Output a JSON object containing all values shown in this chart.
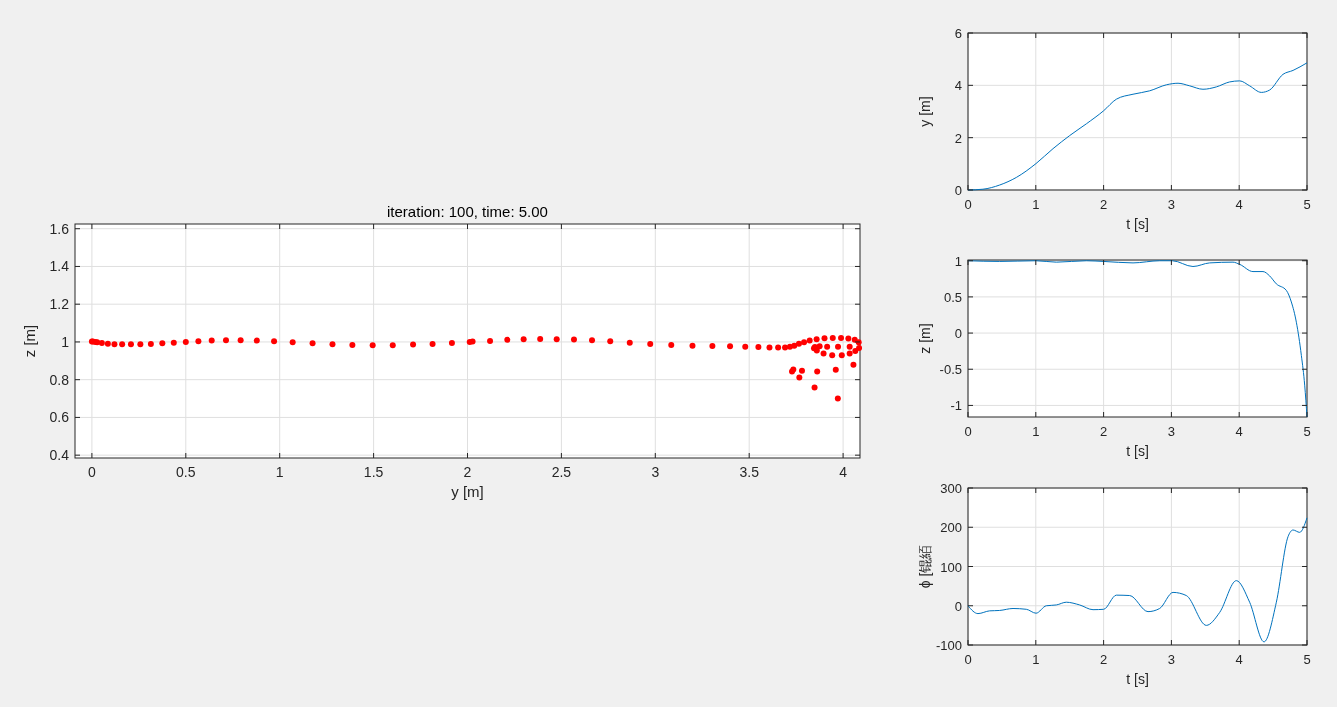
{
  "chart_data": [
    {
      "type": "scatter",
      "title": "iteration: 100, time: 5.00",
      "xlabel": "y [m]",
      "ylabel": "z [m]",
      "xlim": [
        -0.09,
        4.09
      ],
      "ylim": [
        0.385,
        1.625
      ],
      "xticks": [
        0,
        0.5,
        1,
        1.5,
        2,
        2.5,
        3,
        3.5,
        4
      ],
      "yticks": [
        0.4,
        0.6,
        0.8,
        1,
        1.2,
        1.4,
        1.6
      ],
      "grid": true,
      "marker": "circle",
      "series": [
        {
          "color": "#ff0000",
          "x": [
            0,
            0.005,
            0.018,
            0.028,
            0.053,
            0.085,
            0.12,
            0.161,
            0.208,
            0.258,
            0.314,
            0.375,
            0.436,
            0.5,
            0.567,
            0.638,
            0.714,
            0.792,
            0.878,
            0.97,
            1.069,
            1.175,
            1.281,
            1.387,
            1.495,
            1.602,
            1.71,
            1.814,
            1.917,
            2.012,
            2.027,
            2.12,
            2.212,
            2.299,
            2.387,
            2.475,
            2.567,
            2.663,
            2.76,
            2.864,
            2.973,
            3.085,
            3.198,
            3.304,
            3.398,
            3.479,
            3.549,
            3.608,
            3.654,
            3.691,
            3.717,
            3.74,
            3.765,
            3.792,
            3.822,
            3.859,
            3.901,
            3.945,
            3.989,
            4.028,
            4.062,
            4.083,
            4.085,
            4.065,
            4.035,
            3.993,
            3.942,
            3.896,
            3.86,
            3.845,
            3.85,
            3.875,
            3.915,
            3.973,
            4.035,
            3.728,
            3.735,
            3.781,
            3.767,
            3.848,
            3.862,
            3.961,
            3.972,
            4.055
          ],
          "values": [
            1.002,
            1.002,
            1.0,
            0.998,
            0.995,
            0.991,
            0.988,
            0.988,
            0.988,
            0.988,
            0.989,
            0.993,
            0.996,
            1.0,
            1.004,
            1.007,
            1.009,
            1.009,
            1.007,
            1.004,
            0.998,
            0.993,
            0.988,
            0.984,
            0.982,
            0.982,
            0.986,
            0.989,
            0.995,
            1.0,
            1.002,
            1.005,
            1.011,
            1.014,
            1.016,
            1.014,
            1.013,
            1.009,
            1.004,
            0.996,
            0.989,
            0.984,
            0.98,
            0.979,
            0.977,
            0.975,
            0.973,
            0.971,
            0.971,
            0.971,
            0.975,
            0.98,
            0.991,
            0.998,
            1.007,
            1.014,
            1.02,
            1.021,
            1.021,
            1.018,
            1.011,
            0.998,
            0.968,
            0.952,
            0.939,
            0.93,
            0.93,
            0.939,
            0.954,
            0.966,
            0.973,
            0.977,
            0.975,
            0.975,
            0.975,
            0.843,
            0.854,
            0.848,
            0.811,
            0.759,
            0.843,
            0.852,
            0.7,
            0.879
          ]
        }
      ]
    },
    {
      "type": "line",
      "xlabel": "t [s]",
      "ylabel": "y [m]",
      "xlim": [
        0,
        5
      ],
      "ylim": [
        0,
        6
      ],
      "xticks": [
        0,
        1,
        2,
        3,
        4,
        5
      ],
      "yticks": [
        0,
        2,
        4,
        6
      ],
      "grid": true,
      "series": [
        {
          "color": "#0072bd",
          "x": [
            0,
            0.22,
            0.467,
            0.713,
            1.003,
            1.254,
            1.5,
            1.746,
            2.001,
            2.188,
            2.434,
            2.68,
            2.926,
            3.098,
            3.27,
            3.466,
            3.663,
            3.859,
            4.007,
            4.154,
            4.326,
            4.449,
            4.646,
            4.794,
            5
          ],
          "values": [
            0,
            0.03,
            0.19,
            0.48,
            1.01,
            1.58,
            2.08,
            2.53,
            3.03,
            3.47,
            3.66,
            3.79,
            4.02,
            4.08,
            3.98,
            3.85,
            3.94,
            4.13,
            4.17,
            3.98,
            3.73,
            3.82,
            4.42,
            4.57,
            4.86
          ]
        }
      ]
    },
    {
      "type": "line",
      "xlabel": "t [s]",
      "ylabel": "z [m]",
      "xlim": [
        0,
        5
      ],
      "ylim": [
        -1.16,
        1.01
      ],
      "xticks": [
        0,
        1,
        2,
        3,
        4,
        5
      ],
      "yticks": [
        -1,
        -0.5,
        0,
        0.5,
        1
      ],
      "grid": true,
      "series": [
        {
          "color": "#0072bd",
          "x": [
            0,
            0.467,
            1.003,
            1.303,
            1.746,
            2.001,
            2.434,
            2.827,
            3.013,
            3.318,
            3.564,
            3.908,
            4.007,
            4.203,
            4.351,
            4.449,
            4.548,
            4.695,
            4.769,
            4.843,
            4.917,
            4.966,
            5
          ],
          "values": [
            1,
            0.99,
            1,
            0.98,
            1,
            0.99,
            0.97,
            1,
            1,
            0.92,
            0.97,
            0.98,
            0.95,
            0.85,
            0.85,
            0.79,
            0.68,
            0.59,
            0.43,
            0.15,
            -0.31,
            -0.72,
            -1.16
          ]
        }
      ]
    },
    {
      "type": "line",
      "xlabel": "t [s]",
      "ylabel": "ϕ [锟絔",
      "xlim": [
        0,
        5
      ],
      "ylim": [
        -100,
        300
      ],
      "xticks": [
        0,
        1,
        2,
        3,
        4,
        5
      ],
      "yticks": [
        -100,
        0,
        100,
        200,
        300
      ],
      "grid": true,
      "series": [
        {
          "color": "#0072bd",
          "x": [
            0,
            0.147,
            0.319,
            0.467,
            0.664,
            0.86,
            1.003,
            1.155,
            1.303,
            1.45,
            1.647,
            1.844,
            2.001,
            2.188,
            2.385,
            2.655,
            2.827,
            3.024,
            3.22,
            3.515,
            3.712,
            3.958,
            4.154,
            4.366,
            4.548,
            4.72,
            4.794,
            4.892,
            5
          ],
          "values": [
            0,
            -20,
            -13,
            -12,
            -7,
            -9,
            -19,
            0,
            2,
            9,
            2,
            -10,
            -9,
            27,
            26,
            -15,
            -7,
            34,
            26,
            -50,
            -17,
            64,
            9,
            -92,
            9,
            176,
            193,
            187,
            224
          ]
        }
      ]
    }
  ]
}
